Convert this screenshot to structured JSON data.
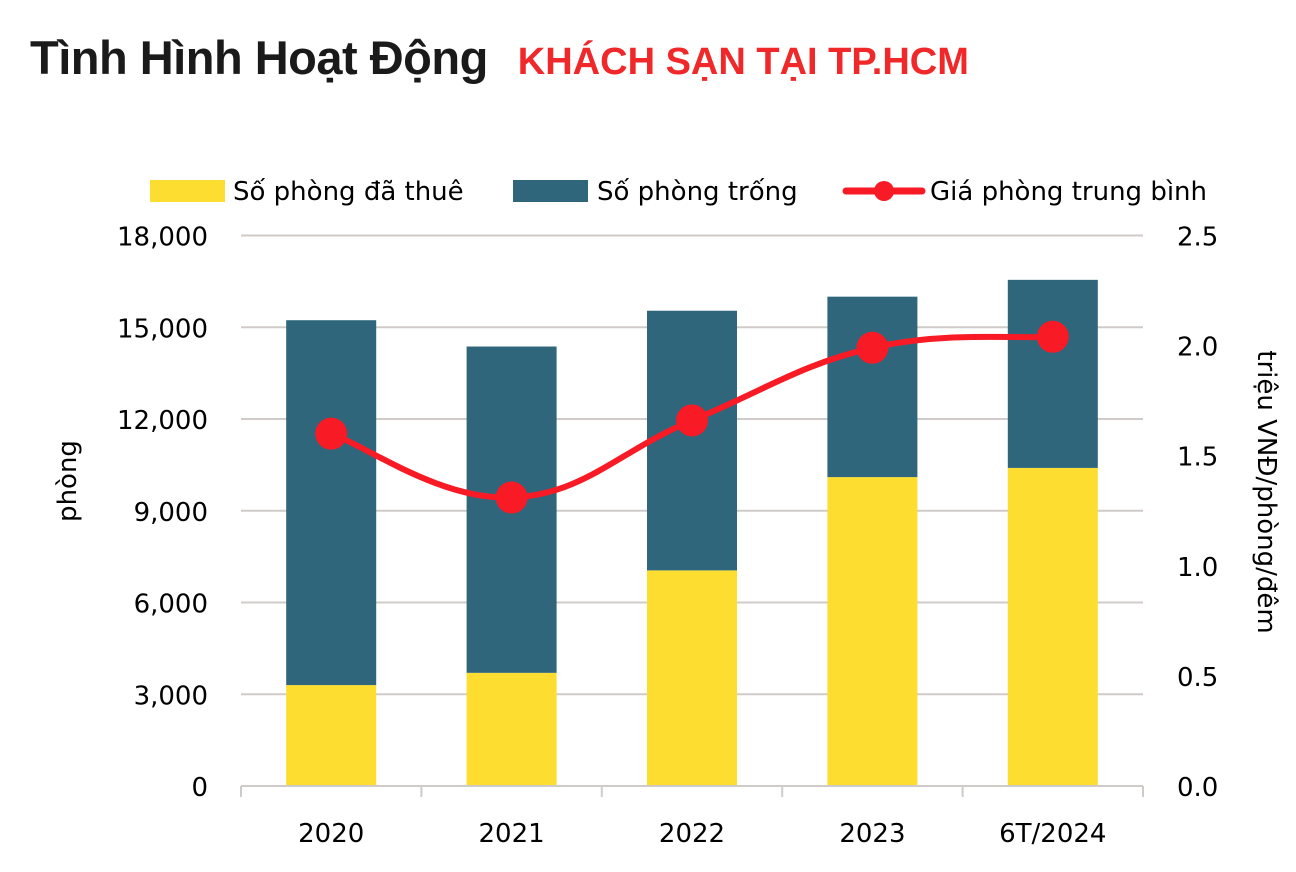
{
  "title": {
    "main": "Tình Hình Hoạt Động",
    "sub": "KHÁCH SẠN TẠI TP.HCM"
  },
  "colors": {
    "rented": "#FDDD2F",
    "vacant": "#2F667C",
    "price": "#F81A25",
    "grid": "#D0CBC8",
    "title_sub": "#F0282A"
  },
  "legend": [
    {
      "label": "Số phòng đã thuê",
      "type": "box",
      "color_key": "rented"
    },
    {
      "label": "Số phòng trống",
      "type": "box",
      "color_key": "vacant"
    },
    {
      "label": "Giá phòng trung bình",
      "type": "line-marker",
      "color_key": "price"
    }
  ],
  "chart_data": {
    "type": "bar",
    "subtype": "stacked bar + line (dual axis)",
    "title": "Tình Hình Hoạt Động KHÁCH SẠN TẠI TP.HCM",
    "categories": [
      "2020",
      "2021",
      "2022",
      "2023",
      "6T/2024"
    ],
    "series": [
      {
        "name": "Số phòng đã thuê",
        "type": "bar",
        "stack": "rooms",
        "axis": "left",
        "color": "#FDDD2F",
        "values": [
          3300,
          3700,
          7050,
          10100,
          10400
        ]
      },
      {
        "name": "Số phòng trống",
        "type": "bar",
        "stack": "rooms",
        "axis": "left",
        "color": "#2F667C",
        "values": [
          11930,
          10670,
          8490,
          5900,
          6150
        ]
      },
      {
        "name": "Giá phòng trung bình",
        "type": "line",
        "axis": "right",
        "color": "#F81A25",
        "smooth": true,
        "values": [
          1.6,
          1.31,
          1.66,
          1.99,
          2.04
        ]
      }
    ],
    "totals": [
      15230,
      14370,
      15540,
      16000,
      16550
    ],
    "ylabel": "phòng",
    "ylabel_right": "triệu VNĐ/phòng/đêm",
    "xlabel": "",
    "ylim": [
      0,
      18000
    ],
    "ylim_right": [
      0,
      2.5
    ],
    "yticks": [
      "0",
      "3,000",
      "6,000",
      "9,000",
      "12,000",
      "15,000",
      "18,000"
    ],
    "yticks_right": [
      "0.0",
      "0.5",
      "1.0",
      "1.5",
      "2.0",
      "2.5"
    ],
    "grid": true,
    "legend_position": "top"
  }
}
